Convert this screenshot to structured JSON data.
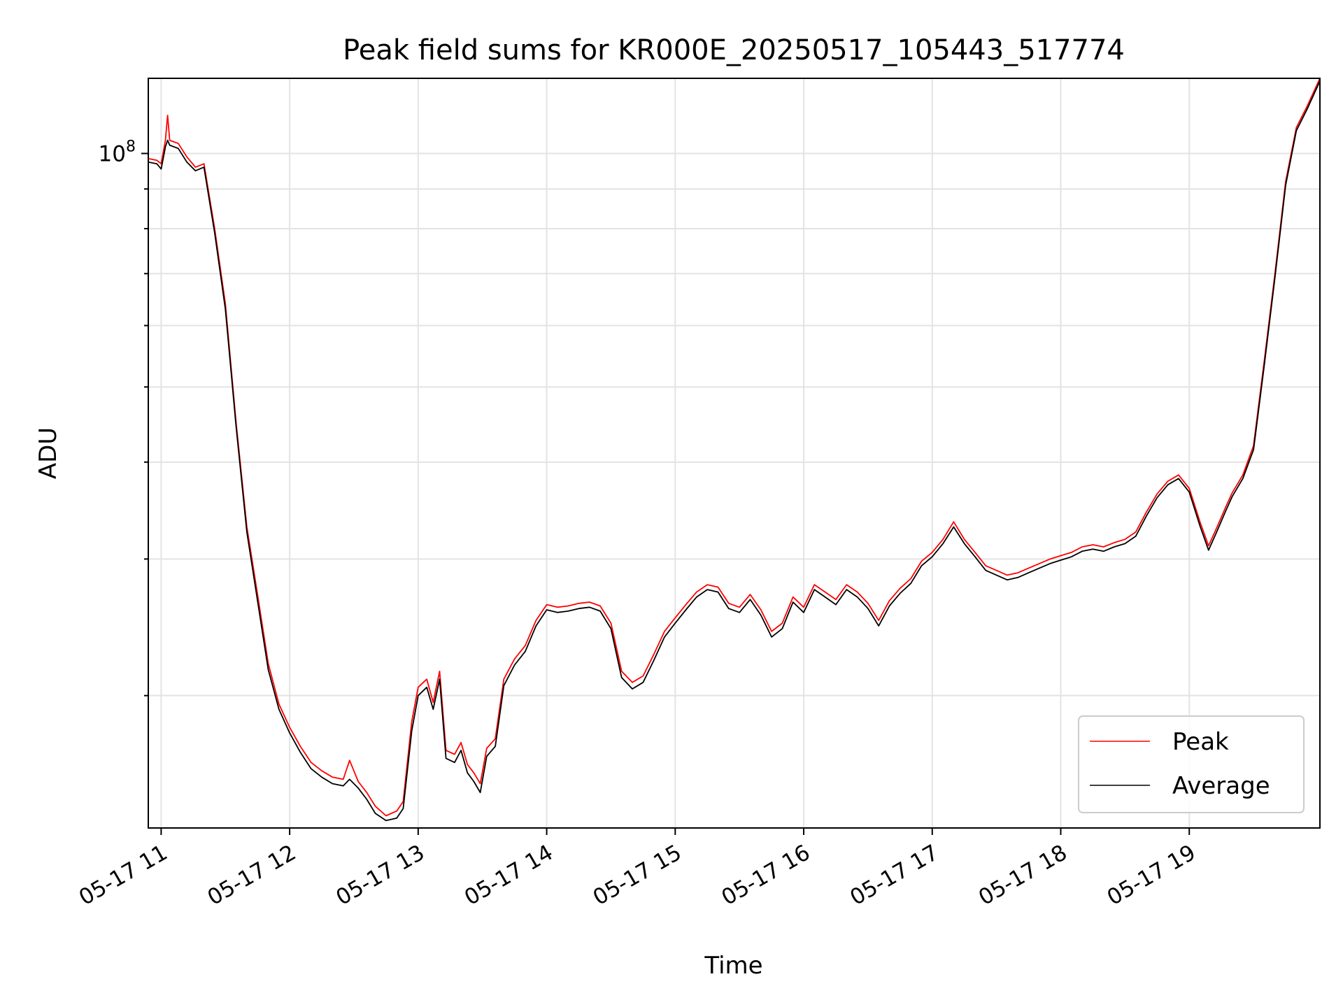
{
  "chart_data": {
    "type": "line",
    "title": "Peak field sums for KR000E_20250517_105443_517774",
    "xlabel": "Time",
    "ylabel": "ADU",
    "x_axis": {
      "type": "time",
      "date": "2025-05-17",
      "start": "10:54",
      "end": "20:01",
      "ticks": [
        {
          "time": "11:00",
          "label": "05-17 11"
        },
        {
          "time": "12:00",
          "label": "05-17 12"
        },
        {
          "time": "13:00",
          "label": "05-17 13"
        },
        {
          "time": "14:00",
          "label": "05-17 14"
        },
        {
          "time": "15:00",
          "label": "05-17 15"
        },
        {
          "time": "16:00",
          "label": "05-17 16"
        },
        {
          "time": "17:00",
          "label": "05-17 17"
        },
        {
          "time": "18:00",
          "label": "05-17 18"
        },
        {
          "time": "19:00",
          "label": "05-17 19"
        }
      ]
    },
    "y_axis": {
      "scale": "log",
      "ylim": [
        13500000,
        125000000
      ],
      "major_tick": {
        "value": 100000000,
        "label_base": "10",
        "label_exp": "8"
      },
      "minor_ticks": [
        20000000,
        30000000,
        40000000,
        50000000,
        60000000,
        70000000,
        80000000,
        90000000
      ]
    },
    "grid": true,
    "legend_position": "lower right",
    "series": [
      {
        "name": "Peak",
        "color": "#ff0000",
        "points": [
          [
            "10:54",
            98500000
          ],
          [
            "10:58",
            98000000
          ],
          [
            "11:00",
            97000000
          ],
          [
            "11:02",
            104000000
          ],
          [
            "11:03",
            112000000
          ],
          [
            "11:04",
            104000000
          ],
          [
            "11:08",
            103000000
          ],
          [
            "11:12",
            99000000
          ],
          [
            "11:16",
            96000000
          ],
          [
            "11:20",
            97000000
          ],
          [
            "11:25",
            80000000
          ],
          [
            "11:30",
            64000000
          ],
          [
            "11:35",
            45000000
          ],
          [
            "11:40",
            33000000
          ],
          [
            "11:45",
            27000000
          ],
          [
            "11:50",
            22000000
          ],
          [
            "11:55",
            19500000
          ],
          [
            "12:00",
            18200000
          ],
          [
            "12:05",
            17200000
          ],
          [
            "12:10",
            16400000
          ],
          [
            "12:15",
            16000000
          ],
          [
            "12:20",
            15700000
          ],
          [
            "12:25",
            15600000
          ],
          [
            "12:28",
            16500000
          ],
          [
            "12:32",
            15500000
          ],
          [
            "12:36",
            15000000
          ],
          [
            "12:40",
            14400000
          ],
          [
            "12:45",
            14000000
          ],
          [
            "12:50",
            14200000
          ],
          [
            "12:53",
            14600000
          ],
          [
            "12:57",
            18500000
          ],
          [
            "13:00",
            20500000
          ],
          [
            "13:04",
            21000000
          ],
          [
            "13:07",
            19600000
          ],
          [
            "13:10",
            21500000
          ],
          [
            "13:13",
            17000000
          ],
          [
            "13:17",
            16800000
          ],
          [
            "13:20",
            17400000
          ],
          [
            "13:23",
            16300000
          ],
          [
            "13:26",
            15900000
          ],
          [
            "13:29",
            15400000
          ],
          [
            "13:32",
            17100000
          ],
          [
            "13:36",
            17600000
          ],
          [
            "13:40",
            21000000
          ],
          [
            "13:45",
            22300000
          ],
          [
            "13:50",
            23200000
          ],
          [
            "13:55",
            25000000
          ],
          [
            "14:00",
            26200000
          ],
          [
            "14:05",
            26000000
          ],
          [
            "14:10",
            26100000
          ],
          [
            "14:15",
            26300000
          ],
          [
            "14:20",
            26400000
          ],
          [
            "14:25",
            26100000
          ],
          [
            "14:30",
            24800000
          ],
          [
            "14:35",
            21500000
          ],
          [
            "14:40",
            20800000
          ],
          [
            "14:45",
            21200000
          ],
          [
            "14:50",
            22600000
          ],
          [
            "14:55",
            24200000
          ],
          [
            "15:00",
            25200000
          ],
          [
            "15:05",
            26200000
          ],
          [
            "15:10",
            27200000
          ],
          [
            "15:15",
            27800000
          ],
          [
            "15:20",
            27600000
          ],
          [
            "15:25",
            26300000
          ],
          [
            "15:30",
            26000000
          ],
          [
            "15:35",
            27000000
          ],
          [
            "15:40",
            25800000
          ],
          [
            "15:45",
            24200000
          ],
          [
            "15:50",
            24800000
          ],
          [
            "15:55",
            26800000
          ],
          [
            "16:00",
            26000000
          ],
          [
            "16:05",
            27800000
          ],
          [
            "16:10",
            27200000
          ],
          [
            "16:15",
            26600000
          ],
          [
            "16:20",
            27800000
          ],
          [
            "16:25",
            27200000
          ],
          [
            "16:30",
            26300000
          ],
          [
            "16:35",
            25000000
          ],
          [
            "16:40",
            26500000
          ],
          [
            "16:45",
            27500000
          ],
          [
            "16:50",
            28300000
          ],
          [
            "16:55",
            29800000
          ],
          [
            "17:00",
            30600000
          ],
          [
            "17:05",
            31800000
          ],
          [
            "17:10",
            33500000
          ],
          [
            "17:15",
            31800000
          ],
          [
            "17:20",
            30600000
          ],
          [
            "17:25",
            29400000
          ],
          [
            "17:30",
            29000000
          ],
          [
            "17:35",
            28600000
          ],
          [
            "17:40",
            28800000
          ],
          [
            "17:45",
            29200000
          ],
          [
            "17:50",
            29600000
          ],
          [
            "17:55",
            30000000
          ],
          [
            "18:00",
            30300000
          ],
          [
            "18:05",
            30600000
          ],
          [
            "18:10",
            31100000
          ],
          [
            "18:15",
            31300000
          ],
          [
            "18:20",
            31100000
          ],
          [
            "18:25",
            31500000
          ],
          [
            "18:30",
            31800000
          ],
          [
            "18:35",
            32500000
          ],
          [
            "18:40",
            34500000
          ],
          [
            "18:45",
            36400000
          ],
          [
            "18:50",
            37800000
          ],
          [
            "18:55",
            38500000
          ],
          [
            "19:00",
            37000000
          ],
          [
            "19:05",
            33500000
          ],
          [
            "19:09",
            31200000
          ],
          [
            "19:13",
            33000000
          ],
          [
            "19:17",
            35000000
          ],
          [
            "19:20",
            36500000
          ],
          [
            "19:25",
            38500000
          ],
          [
            "19:30",
            42000000
          ],
          [
            "19:35",
            54000000
          ],
          [
            "19:40",
            70000000
          ],
          [
            "19:45",
            92000000
          ],
          [
            "19:50",
            108000000
          ],
          [
            "19:55",
            115000000
          ],
          [
            "20:01",
            125000000
          ]
        ]
      },
      {
        "name": "Average",
        "color": "#000000",
        "points": [
          [
            "10:54",
            97500000
          ],
          [
            "10:58",
            97000000
          ],
          [
            "11:00",
            95500000
          ],
          [
            "11:02",
            102000000
          ],
          [
            "11:03",
            104000000
          ],
          [
            "11:04",
            102500000
          ],
          [
            "11:08",
            101500000
          ],
          [
            "11:12",
            97500000
          ],
          [
            "11:16",
            95000000
          ],
          [
            "11:20",
            96000000
          ],
          [
            "11:25",
            79000000
          ],
          [
            "11:30",
            63000000
          ],
          [
            "11:35",
            44500000
          ],
          [
            "11:40",
            32500000
          ],
          [
            "11:45",
            26500000
          ],
          [
            "11:50",
            21600000
          ],
          [
            "11:55",
            19200000
          ],
          [
            "12:00",
            17900000
          ],
          [
            "12:05",
            16900000
          ],
          [
            "12:10",
            16100000
          ],
          [
            "12:15",
            15700000
          ],
          [
            "12:20",
            15400000
          ],
          [
            "12:25",
            15300000
          ],
          [
            "12:28",
            15600000
          ],
          [
            "12:32",
            15200000
          ],
          [
            "12:36",
            14700000
          ],
          [
            "12:40",
            14100000
          ],
          [
            "12:45",
            13800000
          ],
          [
            "12:50",
            13900000
          ],
          [
            "12:53",
            14300000
          ],
          [
            "12:57",
            18000000
          ],
          [
            "13:00",
            20000000
          ],
          [
            "13:04",
            20500000
          ],
          [
            "13:07",
            19200000
          ],
          [
            "13:10",
            21000000
          ],
          [
            "13:13",
            16600000
          ],
          [
            "13:17",
            16400000
          ],
          [
            "13:20",
            17000000
          ],
          [
            "13:23",
            15900000
          ],
          [
            "13:26",
            15500000
          ],
          [
            "13:29",
            15000000
          ],
          [
            "13:32",
            16700000
          ],
          [
            "13:36",
            17200000
          ],
          [
            "13:40",
            20600000
          ],
          [
            "13:45",
            21900000
          ],
          [
            "13:50",
            22800000
          ],
          [
            "13:55",
            24600000
          ],
          [
            "14:00",
            25800000
          ],
          [
            "14:05",
            25600000
          ],
          [
            "14:10",
            25700000
          ],
          [
            "14:15",
            25900000
          ],
          [
            "14:20",
            26000000
          ],
          [
            "14:25",
            25700000
          ],
          [
            "14:30",
            24400000
          ],
          [
            "14:35",
            21100000
          ],
          [
            "14:40",
            20400000
          ],
          [
            "14:45",
            20800000
          ],
          [
            "14:50",
            22200000
          ],
          [
            "14:55",
            23800000
          ],
          [
            "15:00",
            24800000
          ],
          [
            "15:05",
            25800000
          ],
          [
            "15:10",
            26800000
          ],
          [
            "15:15",
            27400000
          ],
          [
            "15:20",
            27200000
          ],
          [
            "15:25",
            25900000
          ],
          [
            "15:30",
            25600000
          ],
          [
            "15:35",
            26600000
          ],
          [
            "15:40",
            25400000
          ],
          [
            "15:45",
            23800000
          ],
          [
            "15:50",
            24400000
          ],
          [
            "15:55",
            26400000
          ],
          [
            "16:00",
            25600000
          ],
          [
            "16:05",
            27400000
          ],
          [
            "16:10",
            26800000
          ],
          [
            "16:15",
            26200000
          ],
          [
            "16:20",
            27400000
          ],
          [
            "16:25",
            26800000
          ],
          [
            "16:30",
            25900000
          ],
          [
            "16:35",
            24600000
          ],
          [
            "16:40",
            26100000
          ],
          [
            "16:45",
            27100000
          ],
          [
            "16:50",
            27900000
          ],
          [
            "16:55",
            29400000
          ],
          [
            "17:00",
            30200000
          ],
          [
            "17:05",
            31400000
          ],
          [
            "17:10",
            33000000
          ],
          [
            "17:15",
            31400000
          ],
          [
            "17:20",
            30200000
          ],
          [
            "17:25",
            29000000
          ],
          [
            "17:30",
            28600000
          ],
          [
            "17:35",
            28200000
          ],
          [
            "17:40",
            28400000
          ],
          [
            "17:45",
            28800000
          ],
          [
            "17:50",
            29200000
          ],
          [
            "17:55",
            29600000
          ],
          [
            "18:00",
            29900000
          ],
          [
            "18:05",
            30200000
          ],
          [
            "18:10",
            30700000
          ],
          [
            "18:15",
            30900000
          ],
          [
            "18:20",
            30700000
          ],
          [
            "18:25",
            31100000
          ],
          [
            "18:30",
            31400000
          ],
          [
            "18:35",
            32100000
          ],
          [
            "18:40",
            34100000
          ],
          [
            "18:45",
            36000000
          ],
          [
            "18:50",
            37400000
          ],
          [
            "18:55",
            38100000
          ],
          [
            "19:00",
            36600000
          ],
          [
            "19:05",
            33100000
          ],
          [
            "19:09",
            30800000
          ],
          [
            "19:13",
            32600000
          ],
          [
            "19:17",
            34600000
          ],
          [
            "19:20",
            36100000
          ],
          [
            "19:25",
            38100000
          ],
          [
            "19:30",
            41500000
          ],
          [
            "19:35",
            53300000
          ],
          [
            "19:40",
            69200000
          ],
          [
            "19:45",
            91000000
          ],
          [
            "19:50",
            107000000
          ],
          [
            "19:55",
            114000000
          ],
          [
            "20:01",
            124000000
          ]
        ]
      }
    ]
  }
}
